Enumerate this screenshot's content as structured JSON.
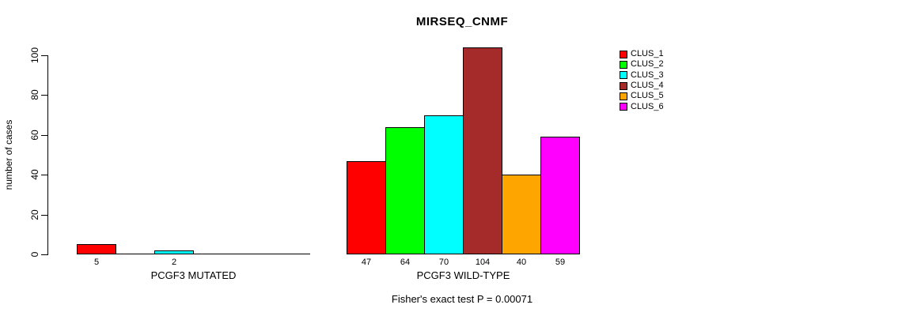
{
  "title": "MIRSEQ_CNMF",
  "footer": "Fisher's exact test P = 0.00071",
  "chart_data": {
    "type": "bar",
    "title": "MIRSEQ_CNMF",
    "xlabel": "",
    "ylabel": "number of cases",
    "ylim": [
      0,
      100
    ],
    "yticks": [
      0,
      20,
      40,
      60,
      80,
      100
    ],
    "grid": false,
    "legend_position": "top-right",
    "categories": [
      "PCGF3 MUTATED",
      "PCGF3 WILD-TYPE"
    ],
    "series": [
      {
        "name": "CLUS_1",
        "color": "#FF0000",
        "values": [
          5,
          47
        ]
      },
      {
        "name": "CLUS_2",
        "color": "#00FF00",
        "values": [
          0,
          64
        ]
      },
      {
        "name": "CLUS_3",
        "color": "#00FFFF",
        "values": [
          2,
          70
        ]
      },
      {
        "name": "CLUS_4",
        "color": "#A52A2A",
        "values": [
          0,
          104
        ]
      },
      {
        "name": "CLUS_5",
        "color": "#FFA500",
        "values": [
          0,
          40
        ]
      },
      {
        "name": "CLUS_6",
        "color": "#FF00FF",
        "values": [
          0,
          59
        ]
      }
    ],
    "value_labels": {
      "shown": true,
      "note": "printed under each nonzero bar"
    },
    "annotation": "Fisher's exact test P = 0.00071"
  }
}
